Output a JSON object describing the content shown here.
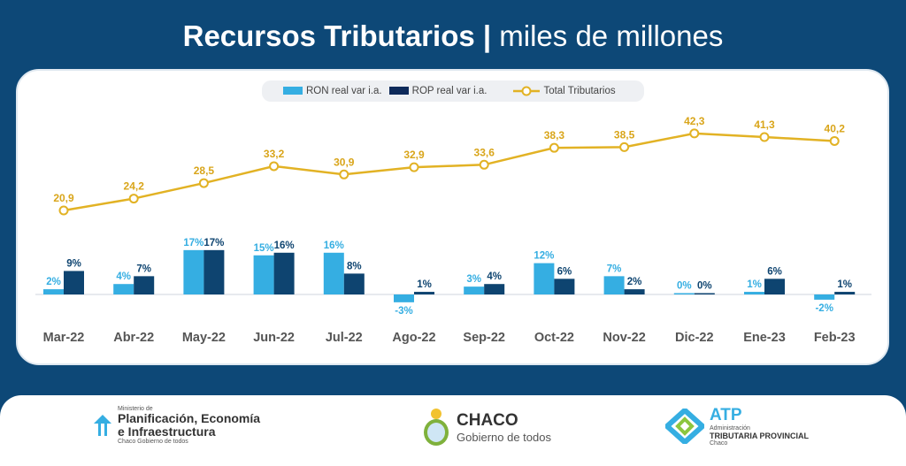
{
  "title": {
    "bold": "Recursos Tributarios |",
    "light": " miles de millones"
  },
  "legend": {
    "ron": "RON real var i.a.",
    "rop": "ROP real var i.a.",
    "total": "Total Tributarios"
  },
  "colors": {
    "ron": "#35aee2",
    "rop": "#0e4470",
    "total": "#e2b224",
    "background": "#0d4877"
  },
  "chart_data": {
    "type": "bar+line",
    "title": "Recursos Tributarios | miles de millones",
    "categories": [
      "Mar-22",
      "Abr-22",
      "May-22",
      "Jun-22",
      "Jul-22",
      "Ago-22",
      "Sep-22",
      "Oct-22",
      "Nov-22",
      "Dic-22",
      "Ene-23",
      "Feb-23"
    ],
    "series": [
      {
        "name": "RON real var i.a.",
        "type": "bar",
        "unit": "%",
        "values": [
          2,
          4,
          17,
          15,
          16,
          -3,
          3,
          12,
          7,
          0,
          1,
          -2
        ]
      },
      {
        "name": "ROP real var i.a.",
        "type": "bar",
        "unit": "%",
        "values": [
          9,
          7,
          17,
          16,
          8,
          1,
          4,
          6,
          2,
          0,
          6,
          1
        ]
      },
      {
        "name": "Total Tributarios",
        "type": "line",
        "values": [
          20.9,
          24.2,
          28.5,
          33.2,
          30.9,
          32.9,
          33.6,
          38.3,
          38.5,
          42.3,
          41.3,
          40.2
        ],
        "labels": [
          "20,9",
          "24,2",
          "28,5",
          "33,2",
          "30,9",
          "32,9",
          "33,6",
          "38,3",
          "38,5",
          "42,3",
          "41,3",
          "40,2"
        ]
      }
    ],
    "legend_position": "top-center",
    "grid": false
  },
  "footer": {
    "ministry": {
      "pre": "Ministerio de",
      "line1": "Planificación, Economía",
      "line2": "e Infraestructura",
      "sub": "Chaco Gobierno de todos"
    },
    "chaco": {
      "name": "CHACO",
      "sub": "Gobierno de todos"
    },
    "atp": {
      "name": "ATP",
      "line1": "Administración",
      "line2": "TRIBUTARIA PROVINCIAL",
      "line3": "Chaco"
    }
  }
}
